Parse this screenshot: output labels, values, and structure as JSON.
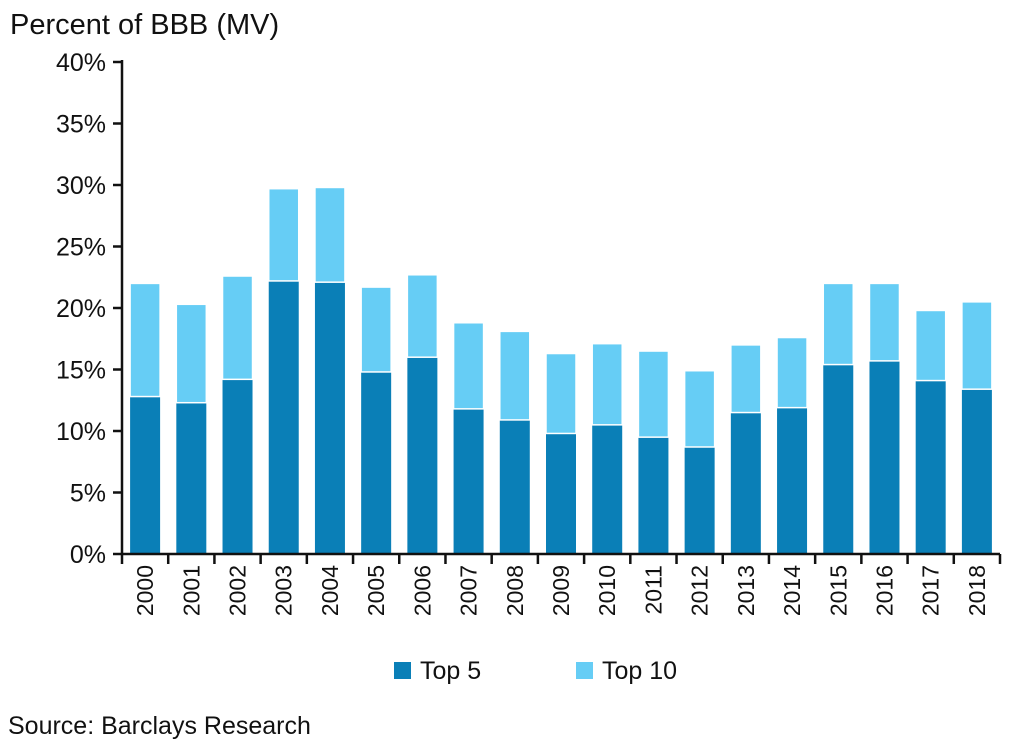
{
  "chart_data": {
    "type": "bar",
    "stacked": true,
    "ylabel": "Percent of BBB (MV)",
    "ylim": [
      0,
      40
    ],
    "yticks": [
      "0%",
      "5%",
      "10%",
      "15%",
      "20%",
      "25%",
      "30%",
      "35%",
      "40%"
    ],
    "categories": [
      "2000",
      "2001",
      "2002",
      "2003",
      "2004",
      "2005",
      "2006",
      "2007",
      "2008",
      "2009",
      "2010",
      "2011",
      "2012",
      "2013",
      "2014",
      "2015",
      "2016",
      "2017",
      "2018"
    ],
    "series": [
      {
        "name": "Top 5",
        "color": "#0a7fb7",
        "values": [
          12.8,
          12.3,
          14.2,
          22.2,
          22.1,
          14.8,
          16.0,
          11.8,
          10.9,
          9.8,
          10.5,
          9.5,
          8.7,
          11.5,
          11.9,
          15.4,
          15.7,
          14.1,
          13.4
        ]
      },
      {
        "name": "Top 10",
        "color": "#66cdf5",
        "values": [
          9.2,
          8.0,
          8.4,
          7.5,
          7.7,
          6.9,
          6.7,
          7.0,
          7.2,
          6.5,
          6.6,
          7.0,
          6.2,
          5.5,
          5.7,
          6.6,
          6.3,
          5.7,
          7.1
        ]
      }
    ],
    "legend_position": "bottom",
    "grid": false
  },
  "source": "Source: Barclays Research"
}
